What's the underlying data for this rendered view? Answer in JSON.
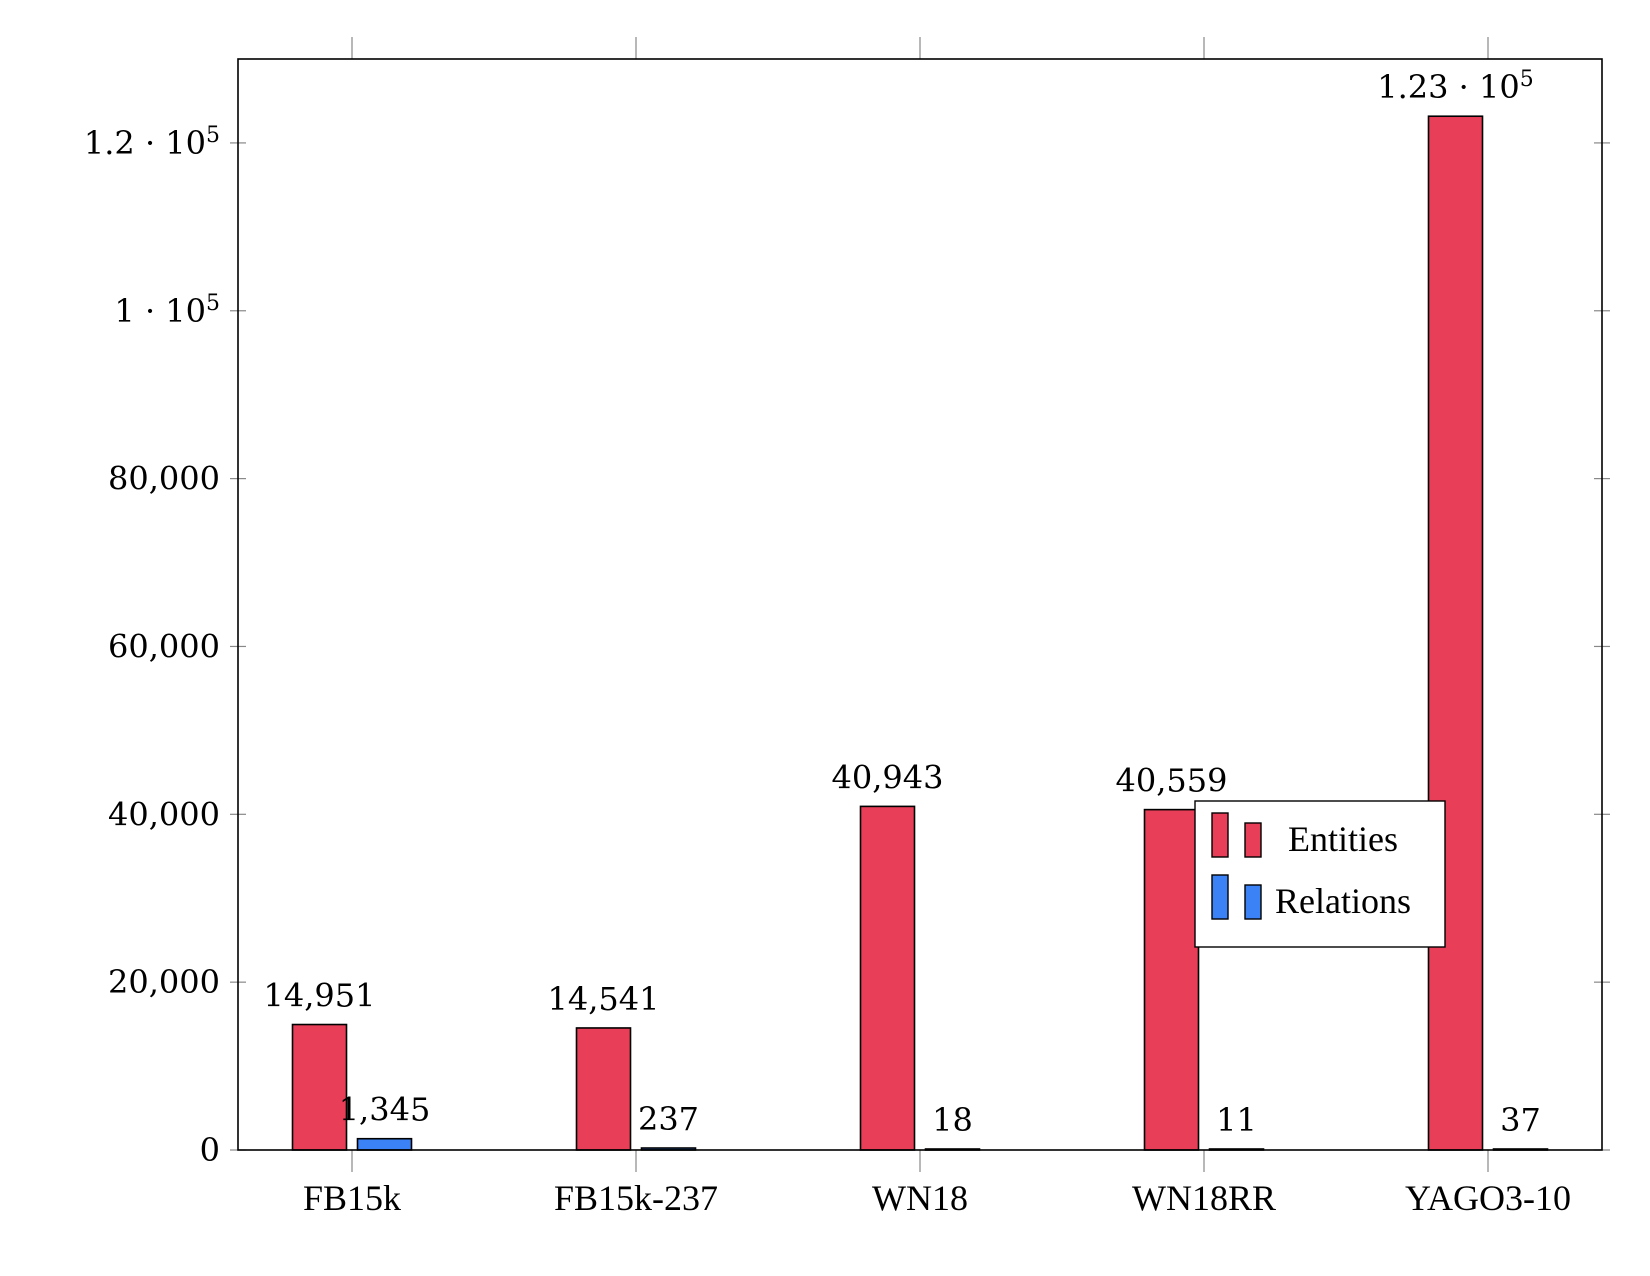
{
  "chart_data": {
    "type": "bar",
    "categories": [
      "FB15k",
      "FB15k-237",
      "WN18",
      "WN18RR",
      "YAGO3-10"
    ],
    "series": [
      {
        "name": "Entities",
        "color": "#e83e58",
        "values": [
          14951,
          14541,
          40943,
          40559,
          123182
        ],
        "labels": [
          "14,951",
          "14,541",
          "40,943",
          "40,559",
          "1.23 · 10^5"
        ]
      },
      {
        "name": "Relations",
        "color": "#3b82f6",
        "values": [
          1345,
          237,
          18,
          11,
          37
        ],
        "labels": [
          "1,345",
          "237",
          "18",
          "11",
          "37"
        ]
      }
    ],
    "ylim": [
      0,
      130000
    ],
    "yticks": [
      {
        "value": 0,
        "label": "0"
      },
      {
        "value": 20000,
        "label": "20,000"
      },
      {
        "value": 40000,
        "label": "40,000"
      },
      {
        "value": 60000,
        "label": "60,000"
      },
      {
        "value": 80000,
        "label": "80,000"
      },
      {
        "value": 100000,
        "label": "1 · 10^5"
      },
      {
        "value": 120000,
        "label": "1.2 · 10^5"
      }
    ],
    "title": "",
    "xlabel": "",
    "ylabel": "",
    "grid": false,
    "legend_position": "center-right"
  }
}
